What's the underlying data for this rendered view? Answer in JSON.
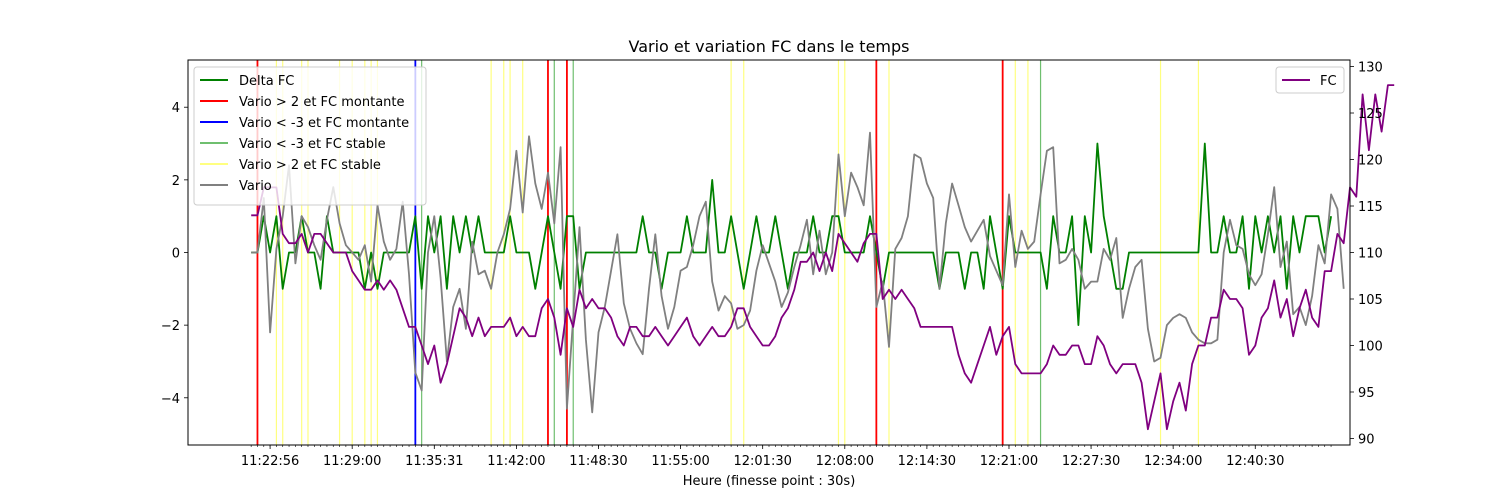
{
  "chart_data": {
    "type": "line",
    "title": "Vario et variation FC dans le temps",
    "xlabel": "Heure (finesse point : 30s)",
    "x_tick_labels": [
      "11:22:56",
      "11:29:00",
      "11:35:31",
      "11:42:00",
      "11:48:30",
      "11:55:00",
      "12:01:30",
      "12:08:00",
      "12:14:30",
      "12:21:00",
      "12:27:30",
      "12:34:00",
      "12:40:30"
    ],
    "x_tick_positions": [
      3,
      16,
      29,
      42,
      55,
      68,
      81,
      94,
      107,
      120,
      133,
      146,
      159
    ],
    "x_range": [
      -10,
      174
    ],
    "y_left": {
      "range": [
        -5.3,
        5.3
      ],
      "ticks": [
        -4,
        -2,
        0,
        2,
        4
      ]
    },
    "y_right": {
      "range": [
        89.3,
        130.7
      ],
      "ticks": [
        90,
        95,
        100,
        105,
        110,
        115,
        120,
        125,
        130
      ]
    },
    "legend_left": {
      "placement": "upper-left",
      "entries": [
        {
          "label": "Delta FC",
          "color": "#008000"
        },
        {
          "label": "Vario > 2 et FC montante",
          "color": "#ff0000"
        },
        {
          "label": "Vario < -3 et FC montante",
          "color": "#0000ff"
        },
        {
          "label": "Vario < -3 et FC stable",
          "color": "#6fbf6f"
        },
        {
          "label": "Vario > 2 et FC stable",
          "color": "#ffff80"
        },
        {
          "label": "Vario",
          "color": "#808080"
        }
      ]
    },
    "legend_right": {
      "placement": "upper-right",
      "entries": [
        {
          "label": "FC",
          "color": "#800080"
        }
      ]
    },
    "vlines": {
      "vario_gt2_fc_montante": [
        1,
        47,
        50,
        99,
        119
      ],
      "vario_lt_m3_fc_montante": [
        26
      ],
      "vario_lt_m3_fc_stable": [
        27,
        48,
        51,
        125
      ],
      "vario_gt2_fc_stable": [
        4,
        5,
        8,
        9,
        14,
        16,
        18,
        19,
        20,
        38,
        40,
        41,
        43,
        76,
        78,
        93,
        94,
        101,
        121,
        123,
        144,
        150
      ]
    },
    "series": [
      {
        "name": "Delta FC",
        "axis": "left",
        "color": "#008000",
        "values": [
          0,
          0,
          1,
          0,
          1,
          -1,
          0,
          0,
          1,
          0,
          0,
          -1,
          1,
          0,
          0,
          0,
          0,
          0,
          -1,
          0,
          -1,
          0,
          0,
          0,
          0,
          0,
          1,
          -1,
          1,
          0,
          1,
          -1,
          1,
          0,
          1,
          0,
          1,
          0,
          0,
          0,
          0,
          1,
          0,
          0,
          0,
          -1,
          0,
          1,
          0,
          -1,
          1,
          1,
          -1,
          0,
          0,
          0,
          0,
          0,
          0,
          0,
          0,
          0,
          1,
          0,
          0,
          -1,
          0,
          0,
          0,
          1,
          0,
          0,
          0,
          2,
          0,
          0,
          1,
          0,
          -1,
          0,
          1,
          0,
          0,
          1,
          0,
          -1,
          0,
          0,
          0,
          1,
          0,
          0,
          1,
          1,
          0,
          0,
          0,
          0,
          1,
          0,
          -1,
          0,
          0,
          0,
          0,
          0,
          0,
          0,
          0,
          -1,
          0,
          0,
          0,
          -1,
          0,
          0,
          -1,
          1,
          0,
          -1,
          1,
          0,
          0,
          0,
          0,
          0,
          -1,
          1,
          0,
          0,
          1,
          -2,
          1,
          0,
          3,
          1,
          0,
          -1,
          -1,
          0,
          0,
          0,
          0,
          0,
          0,
          0,
          0,
          0,
          0,
          0,
          0,
          3,
          0,
          0,
          1,
          0,
          0,
          1,
          -1,
          1,
          0,
          1,
          0,
          1,
          -1,
          1,
          0,
          1,
          1,
          1,
          0,
          1
        ]
      },
      {
        "name": "Vario",
        "axis": "left",
        "color": "#808080",
        "values": [
          0,
          0,
          1.5,
          -2.2,
          0.1,
          1,
          2.4,
          -0.3,
          1,
          0.7,
          0.2,
          -0.2,
          0.9,
          1.8,
          0.8,
          0.2,
          0,
          -0.2,
          0.2,
          -0.8,
          1.3,
          0.3,
          -0.2,
          0.1,
          1.4,
          -0.6,
          -3.3,
          -3.8,
          0,
          1,
          -0.7,
          -3,
          -1.5,
          -1,
          -2.1,
          0.3,
          -0.6,
          -0.5,
          -1,
          0,
          0.5,
          1.2,
          2.8,
          1.1,
          3.2,
          1.9,
          1.2,
          2.2,
          0.8,
          2.9,
          -4.3,
          -1.8,
          0.7,
          -2.4,
          -4.4,
          -2.2,
          -1.5,
          -0.5,
          0.5,
          -1.4,
          -2.1,
          -2.5,
          -2.8,
          -1,
          0.5,
          -1.2,
          -2.1,
          -1.5,
          -0.5,
          -0.4,
          0.2,
          1,
          1.4,
          -0.8,
          -1.6,
          -1.2,
          -1.4,
          -2.1,
          -2,
          -1.6,
          -0.5,
          0.2,
          -0.3,
          -0.8,
          -1.5,
          -1.1,
          -0.4,
          0.2,
          0.9,
          -0.6,
          0.6,
          -0.6,
          0,
          2.7,
          1,
          2.2,
          1.8,
          1.3,
          3.3,
          -1.5,
          -0.8,
          -2.6,
          0.1,
          0.4,
          1,
          2.7,
          2.6,
          1.9,
          1.5,
          -1,
          0.8,
          1.9,
          1.3,
          0.7,
          0.3,
          0.6,
          0.9,
          -0.1,
          -0.5,
          -0.9,
          1.6,
          -0.4,
          0.6,
          0.1,
          0.3,
          1.6,
          2.8,
          2.9,
          -0.3,
          -0.2,
          0.1,
          -0.2,
          -1,
          -0.8,
          -0.8,
          0.1,
          -0.2,
          0.4,
          -1.8,
          -1,
          -0.4,
          -0.2,
          -2.1,
          -3,
          -2.9,
          -2,
          -1.8,
          -1.7,
          -1.8,
          -2.2,
          -2.4,
          -2.5,
          -2.5,
          -2.4,
          0,
          0.9,
          0.2,
          0.1,
          -0.6,
          -0.9,
          -0.6,
          0.5,
          1.8,
          -0.4,
          0.3,
          -1.7,
          -1.5,
          -2,
          -1.2,
          0.2,
          -0.3,
          1.6,
          1.2,
          -1
        ]
      },
      {
        "name": "FC",
        "axis": "right",
        "color": "#800080",
        "values": [
          114,
          114,
          117,
          117,
          117,
          112,
          111,
          111,
          112,
          110,
          112,
          112,
          111,
          110,
          110,
          110,
          108,
          107,
          106,
          106,
          107,
          106,
          107,
          106,
          104,
          102,
          102,
          100,
          98,
          100,
          96,
          98,
          101,
          104,
          103,
          101,
          103,
          101,
          102,
          102,
          102,
          103,
          101,
          102,
          101,
          101,
          104,
          105,
          103,
          99,
          104,
          102,
          106,
          104,
          105,
          104,
          104,
          103,
          101,
          100,
          102,
          102,
          101,
          101,
          102,
          101,
          100,
          101,
          102,
          103,
          101,
          100,
          101,
          102,
          101,
          101,
          102,
          104,
          104,
          102,
          101,
          100,
          100,
          101,
          103,
          104,
          106,
          109,
          109,
          110,
          108,
          110,
          108,
          112,
          111,
          110,
          109,
          111,
          112,
          112,
          105,
          106,
          105,
          106,
          105,
          104,
          102,
          102,
          102,
          102,
          102,
          102,
          99,
          97,
          96,
          98,
          100,
          102,
          99,
          101,
          102,
          98,
          97,
          97,
          97,
          97,
          98,
          100,
          99,
          99,
          100,
          100,
          98,
          98,
          101,
          100,
          98,
          97,
          98,
          98,
          98,
          96,
          91,
          94,
          97,
          91,
          94,
          96,
          93,
          98,
          100,
          100,
          103,
          103,
          106,
          105,
          105,
          104,
          99,
          100,
          103,
          104,
          107,
          103,
          105,
          101,
          104,
          106,
          103,
          102,
          108,
          108,
          112,
          111,
          117,
          116,
          127,
          121,
          127,
          123,
          128,
          128
        ]
      }
    ]
  }
}
